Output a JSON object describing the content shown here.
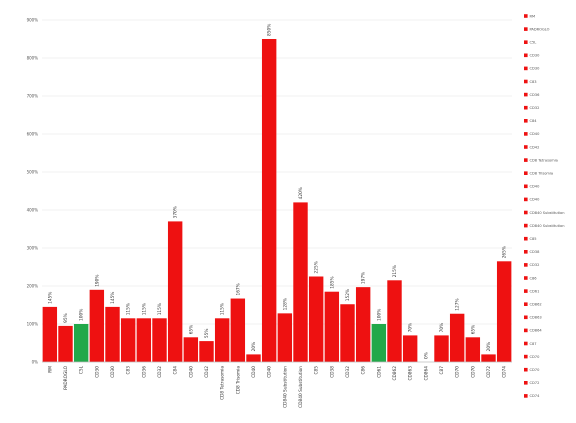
{
  "chart_data": {
    "type": "bar",
    "title": "",
    "xlabel": "",
    "ylabel": "",
    "ylim": [
      0,
      900
    ],
    "y_ticks": [
      0,
      100,
      200,
      300,
      400,
      500,
      600,
      700,
      800,
      900
    ],
    "y_tick_labels": [
      "0%",
      "100%",
      "200%",
      "300%",
      "400%",
      "500%",
      "600%",
      "700%",
      "800%",
      "900%"
    ],
    "grid": true,
    "legend_position": "right",
    "categories": [
      "RM",
      "PADROGLO",
      "C5L",
      "CD30",
      "CD30",
      "C83",
      "CD36",
      "CD32",
      "C84",
      "CD40",
      "CD42",
      "CD8 Tetrasomia",
      "CD8 Trisomia",
      "CD40",
      "CD40",
      "CD840 Substitution",
      "CD840 Substitution",
      "C85",
      "CD38",
      "CD32",
      "C86",
      "CD61",
      "CD862",
      "CD863",
      "CD864",
      "C87",
      "CD70",
      "CD70",
      "CD72",
      "CD74"
    ],
    "values": [
      145,
      95,
      100,
      190,
      145,
      115,
      115,
      115,
      370,
      65,
      55,
      115,
      167,
      20,
      850,
      128,
      420,
      225,
      185,
      152,
      197,
      100,
      215,
      70,
      0,
      70,
      127,
      65,
      20,
      265
    ],
    "value_labels": [
      "145%",
      "95%",
      "100%",
      "190%",
      "145%",
      "115%",
      "115%",
      "115%",
      "370%",
      "65%",
      "55%",
      "115%",
      "167%",
      "20%",
      "850%",
      "128%",
      "420%",
      "225%",
      "185%",
      "152%",
      "197%",
      "100%",
      "215%",
      "70%",
      "0%",
      "70%",
      "127%",
      "65%",
      "20%",
      "265%"
    ],
    "bar_colors": [
      "#ee1111",
      "#ee1111",
      "#22a84a",
      "#ee1111",
      "#ee1111",
      "#ee1111",
      "#ee1111",
      "#ee1111",
      "#ee1111",
      "#ee1111",
      "#ee1111",
      "#ee1111",
      "#ee1111",
      "#ee1111",
      "#ee1111",
      "#ee1111",
      "#ee1111",
      "#ee1111",
      "#ee1111",
      "#ee1111",
      "#ee1111",
      "#22a84a",
      "#ee1111",
      "#ee1111",
      "#ee1111",
      "#ee1111",
      "#ee1111",
      "#ee1111",
      "#ee1111",
      "#ee1111"
    ],
    "legend": {
      "marker_color": "#ee1111",
      "entries": [
        "RM",
        "PADROGLO",
        "C5L",
        "CD30",
        "CD30",
        "C83",
        "CD36",
        "CD32",
        "C84",
        "CD40",
        "CD42",
        "CD8 Tetrasomia",
        "CD8 Trisomia",
        "CD40",
        "CD40",
        "CD840 Substitution",
        "CD840 Substitution",
        "C85",
        "CD38",
        "CD32",
        "C86",
        "CD61",
        "CD862",
        "CD863",
        "CD864",
        "C87",
        "CD70",
        "CD70",
        "CD72",
        "CD74"
      ]
    }
  }
}
